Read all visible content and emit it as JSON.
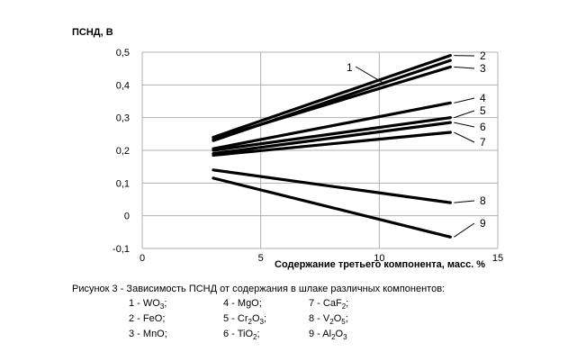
{
  "chart_data": {
    "type": "line",
    "ylabel": "ПСНД, В",
    "xlabel": "Содержание третьего компонента,  масс. %",
    "xlim": [
      0,
      15
    ],
    "ylim": [
      -0.1,
      0.5
    ],
    "x_ticks": [
      "0",
      "5",
      "10",
      "15"
    ],
    "y_ticks": [
      "-0,1",
      "0",
      "0,1",
      "0,2",
      "0,3",
      "0,4",
      "0,5"
    ],
    "grid": true,
    "series": [
      {
        "name": "1",
        "x": [
          3,
          13
        ],
        "y": [
          0.23,
          0.475
        ]
      },
      {
        "name": "2",
        "x": [
          3,
          13
        ],
        "y": [
          0.24,
          0.49
        ]
      },
      {
        "name": "3",
        "x": [
          3,
          13
        ],
        "y": [
          0.235,
          0.455
        ]
      },
      {
        "name": "4",
        "x": [
          3,
          13
        ],
        "y": [
          0.205,
          0.345
        ]
      },
      {
        "name": "5",
        "x": [
          3,
          13
        ],
        "y": [
          0.2,
          0.3
        ]
      },
      {
        "name": "6",
        "x": [
          3,
          13
        ],
        "y": [
          0.19,
          0.285
        ]
      },
      {
        "name": "7",
        "x": [
          3,
          13
        ],
        "y": [
          0.185,
          0.255
        ]
      },
      {
        "name": "8",
        "x": [
          3,
          13
        ],
        "y": [
          0.14,
          0.04
        ]
      },
      {
        "name": "9",
        "x": [
          3,
          13
        ],
        "y": [
          0.115,
          -0.065
        ]
      }
    ]
  },
  "caption": "Рисунок 3 - Зависимость ПСНД от содержания в шлаке различных компонентов:",
  "legend": [
    {
      "num": "1",
      "el": "WO",
      "sub": "3",
      "tail": ";"
    },
    {
      "num": "4",
      "el": "MgO",
      "sub": "",
      "tail": ";"
    },
    {
      "num": "7",
      "el": "CaF",
      "sub": "2",
      "tail": ";"
    },
    {
      "num": "2",
      "el": "FeO",
      "sub": "",
      "tail": ";"
    },
    {
      "num": "5",
      "el": "Cr",
      "sub": "2",
      "el2": "O",
      "sub2": "3",
      "tail": ";"
    },
    {
      "num": "8",
      "el": "V",
      "sub": "2",
      "el2": "O",
      "sub2": "5",
      "tail": ";"
    },
    {
      "num": "3",
      "el": "MnO",
      "sub": "",
      "tail": ";"
    },
    {
      "num": "6",
      "el": "TiO",
      "sub": "2",
      "tail": ";"
    },
    {
      "num": "9",
      "el": " Al",
      "sub": "2",
      "el2": "O",
      "sub2": "3",
      "tail": ""
    }
  ]
}
